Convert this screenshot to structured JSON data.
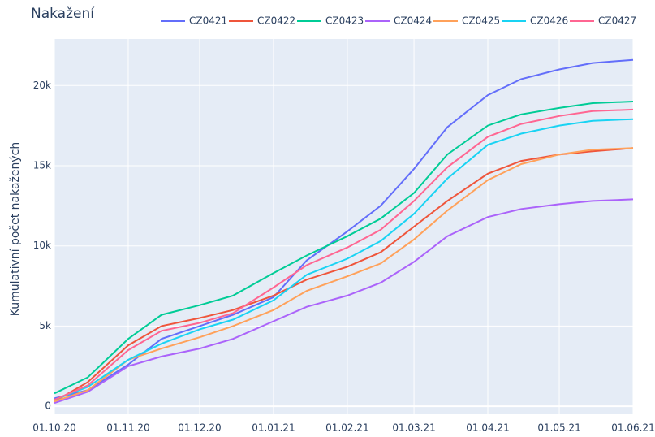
{
  "chart_data": {
    "type": "line",
    "title": "Nakažení",
    "y_label": "Kumulativní počet nakažených",
    "x": [
      "01.10.20",
      "15.10.20",
      "01.11.20",
      "15.11.20",
      "01.12.20",
      "15.12.20",
      "01.01.21",
      "15.01.21",
      "01.02.21",
      "15.02.21",
      "01.03.21",
      "15.03.21",
      "01.04.21",
      "15.04.21",
      "01.05.21",
      "15.05.21",
      "01.06.21"
    ],
    "series": [
      {
        "name": "CZ0421",
        "color": "#636efa",
        "values": [
          500,
          1000,
          2600,
          4200,
          5000,
          5700,
          6800,
          9100,
          10900,
          12500,
          14800,
          17400,
          19400,
          20400,
          21000,
          21400,
          21600
        ]
      },
      {
        "name": "CZ0422",
        "color": "#ef553b",
        "values": [
          300,
          1500,
          3800,
          5000,
          5500,
          6000,
          6900,
          7900,
          8700,
          9600,
          11200,
          12800,
          14500,
          15300,
          15700,
          15900,
          16100
        ]
      },
      {
        "name": "CZ0423",
        "color": "#00cc96",
        "values": [
          800,
          1800,
          4200,
          5700,
          6300,
          6900,
          8300,
          9400,
          10600,
          11700,
          13300,
          15700,
          17500,
          18200,
          18600,
          18900,
          19000
        ]
      },
      {
        "name": "CZ0424",
        "color": "#ab63fa",
        "values": [
          200,
          900,
          2500,
          3100,
          3600,
          4200,
          5300,
          6200,
          6900,
          7700,
          9000,
          10600,
          11800,
          12300,
          12600,
          12800,
          12900
        ]
      },
      {
        "name": "CZ0425",
        "color": "#ffa15a",
        "values": [
          300,
          1000,
          2900,
          3600,
          4300,
          5000,
          6000,
          7200,
          8100,
          8900,
          10400,
          12200,
          14100,
          15100,
          15700,
          16000,
          16100
        ]
      },
      {
        "name": "CZ0426",
        "color": "#19d3f3",
        "values": [
          400,
          1200,
          2900,
          3900,
          4800,
          5400,
          6600,
          8200,
          9200,
          10300,
          12000,
          14200,
          16300,
          17000,
          17500,
          17800,
          17900
        ]
      },
      {
        "name": "CZ0427",
        "color": "#ff6692",
        "values": [
          400,
          1300,
          3500,
          4700,
          5200,
          5800,
          7400,
          8800,
          9900,
          11000,
          12800,
          14900,
          16800,
          17600,
          18100,
          18400,
          18500
        ]
      }
    ],
    "xlim": [
      "01.10.20",
      "01.06.21"
    ],
    "xticks": [
      "01.10.20",
      "01.11.20",
      "01.12.20",
      "01.01.21",
      "01.02.21",
      "01.03.21",
      "01.04.21",
      "01.05.21",
      "01.06.21"
    ],
    "ylim": [
      -500,
      22900
    ],
    "yticks": [
      0,
      {
        "value": 5000,
        "label": "5k"
      },
      {
        "value": 10000,
        "label": "10k"
      },
      {
        "value": 15000,
        "label": "15k"
      },
      {
        "value": 20000,
        "label": "20k"
      }
    ],
    "grid": true,
    "legend": "top"
  }
}
